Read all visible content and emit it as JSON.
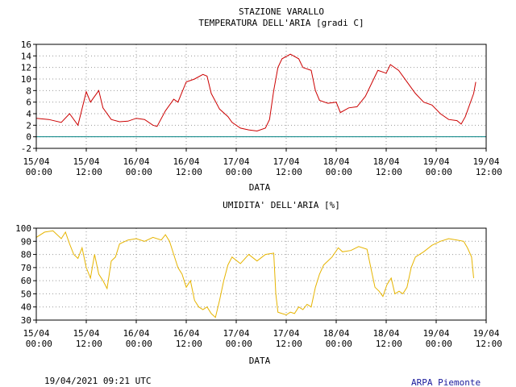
{
  "chart_data": [
    {
      "type": "line",
      "title": "STAZIONE VARALLO",
      "subtitle": "TEMPERATURA DELL'ARIA [gradi C]",
      "x_label": "DATA",
      "xlim": [
        0,
        108
      ],
      "xticks": [
        {
          "value": 0,
          "label": "15/04 00:00"
        },
        {
          "value": 12,
          "label": "15/04 12:00"
        },
        {
          "value": 24,
          "label": "16/04 00:00"
        },
        {
          "value": 36,
          "label": "16/04 12:00"
        },
        {
          "value": 48,
          "label": "17/04 00:00"
        },
        {
          "value": 60,
          "label": "17/04 12:00"
        },
        {
          "value": 72,
          "label": "18/04 00:00"
        },
        {
          "value": 84,
          "label": "18/04 12:00"
        },
        {
          "value": 96,
          "label": "19/04 00:00"
        },
        {
          "value": 108,
          "label": "19/04 12:00"
        }
      ],
      "ylim": [
        -2,
        16
      ],
      "yticks": [
        -2,
        0,
        2,
        4,
        6,
        8,
        10,
        12,
        14,
        16
      ],
      "grid": true,
      "hline": 0,
      "hline_color": "#008080",
      "series": [
        {
          "color": "#cc0000",
          "x": [
            0,
            3,
            6,
            8,
            10,
            12,
            13,
            15,
            16,
            18,
            20,
            22,
            24,
            26,
            28,
            29,
            31,
            33,
            34,
            36,
            38,
            40,
            41,
            42,
            44,
            46,
            47,
            49,
            51,
            53,
            55,
            56,
            57,
            58,
            59,
            61,
            63,
            64,
            66,
            67,
            68,
            70,
            72,
            73,
            75,
            77,
            79,
            81,
            82,
            84,
            85,
            87,
            89,
            91,
            93,
            95,
            97,
            99,
            101,
            102,
            103,
            104,
            105,
            105.5
          ],
          "values": [
            3.2,
            3.0,
            2.5,
            4.0,
            2.0,
            7.8,
            6.0,
            8.0,
            5.0,
            3.0,
            2.6,
            2.7,
            3.2,
            3.0,
            2.0,
            1.8,
            4.5,
            6.5,
            6.0,
            9.5,
            10.0,
            10.8,
            10.5,
            7.5,
            4.8,
            3.5,
            2.5,
            1.5,
            1.2,
            1.0,
            1.5,
            3.0,
            8.0,
            12.0,
            13.5,
            14.3,
            13.5,
            12.0,
            11.5,
            8.0,
            6.3,
            5.8,
            6.0,
            4.2,
            5.0,
            5.2,
            7.0,
            10.0,
            11.5,
            11.0,
            12.5,
            11.5,
            9.5,
            7.5,
            6.0,
            5.5,
            4.0,
            3.0,
            2.8,
            2.2,
            3.5,
            5.5,
            7.5,
            9.5
          ]
        }
      ]
    },
    {
      "type": "line",
      "title": "UMIDITA' DELL'ARIA [%]",
      "x_label": "DATA",
      "xlim": [
        0,
        108
      ],
      "xticks": [
        {
          "value": 0,
          "label": "15/04 00:00"
        },
        {
          "value": 12,
          "label": "15/04 12:00"
        },
        {
          "value": 24,
          "label": "16/04 00:00"
        },
        {
          "value": 36,
          "label": "16/04 12:00"
        },
        {
          "value": 48,
          "label": "17/04 00:00"
        },
        {
          "value": 60,
          "label": "17/04 12:00"
        },
        {
          "value": 72,
          "label": "18/04 00:00"
        },
        {
          "value": 84,
          "label": "18/04 12:00"
        },
        {
          "value": 96,
          "label": "19/04 00:00"
        },
        {
          "value": 108,
          "label": "19/04 12:00"
        }
      ],
      "ylim": [
        30,
        100
      ],
      "yticks": [
        30,
        40,
        50,
        60,
        70,
        80,
        90,
        100
      ],
      "grid": true,
      "series": [
        {
          "color": "#e6b400",
          "x": [
            0,
            2,
            4,
            6,
            7,
            8,
            9,
            10,
            11,
            12,
            13,
            14,
            15,
            16,
            17,
            18,
            19,
            20,
            22,
            24,
            26,
            28,
            30,
            31,
            32,
            33,
            34,
            35,
            36,
            37,
            38,
            39,
            40,
            41,
            42,
            43,
            44,
            45,
            46,
            47,
            49,
            51,
            53,
            55,
            57,
            57.5,
            58,
            59,
            60,
            61,
            62,
            63,
            64,
            65,
            66,
            67,
            68,
            69,
            71,
            72.5,
            73.5,
            75.5,
            77.4,
            79.4,
            80.3,
            81.3,
            82.3,
            83.2,
            84.2,
            85.2,
            86.1,
            87.1,
            88,
            89,
            90,
            91,
            93,
            95,
            97,
            99,
            101,
            102.6,
            103.5,
            104.5,
            105
          ],
          "values": [
            93,
            97,
            98,
            92,
            97,
            88,
            80,
            77,
            85,
            70,
            62,
            80,
            65,
            60,
            54,
            75,
            78,
            88,
            91,
            92,
            90,
            93,
            91,
            95,
            90,
            80,
            70,
            65,
            55,
            60,
            45,
            40,
            38,
            40,
            35,
            32,
            45,
            60,
            72,
            78,
            73,
            80,
            75,
            80,
            81,
            50,
            36,
            35,
            34,
            36,
            35,
            40,
            38,
            42,
            40,
            55,
            65,
            72,
            78,
            85,
            82,
            83,
            86,
            84,
            70,
            55,
            52,
            48,
            57,
            62,
            50,
            52,
            50,
            55,
            70,
            78,
            82,
            87,
            90,
            92,
            91,
            90,
            85,
            78,
            62
          ]
        }
      ]
    }
  ],
  "footer": {
    "timestamp": "19/04/2021 09:21 UTC",
    "source": "ARPA Piemonte"
  }
}
